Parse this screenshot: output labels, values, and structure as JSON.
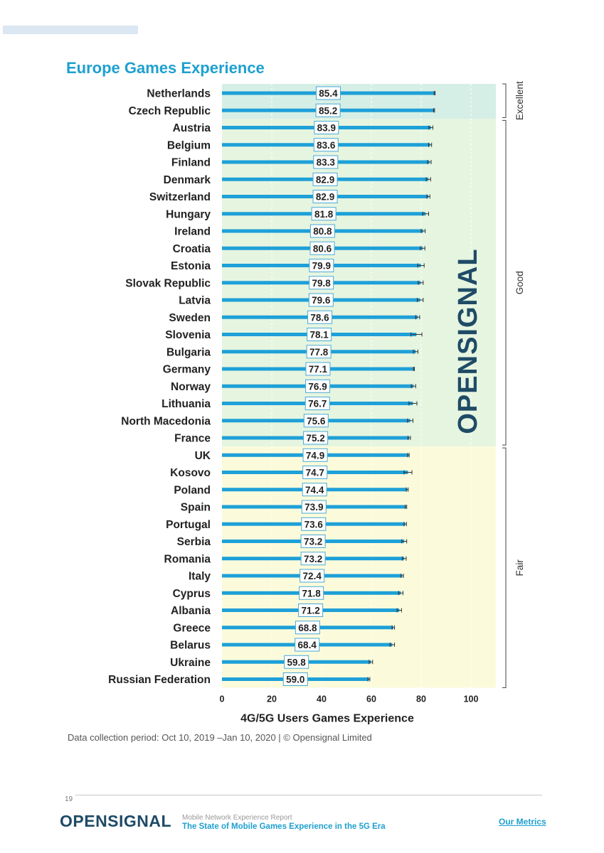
{
  "page": {
    "title": "Europe Games Experience",
    "note": "Data collection period: Oct 10, 2019 –Jan 10, 2020 | © Opensignal Limited",
    "watermark": "OPENSIGNAL",
    "page_number": "19",
    "footer": {
      "logo": "OPENSIGNAL",
      "report": "Mobile Network Experience Report",
      "subtitle": "The State of Mobile Games Experience in the 5G Era",
      "link": "Our Metrics"
    }
  },
  "colors": {
    "bar": "#1ea0d8",
    "excellent_band": "#d6efe6",
    "good_band": "#e6f5e0",
    "fair_band": "#fbfbdb",
    "title": "#1ea0cf"
  },
  "chart_data": {
    "type": "bar",
    "orientation": "horizontal",
    "xlabel": "4G/5G Users Games Experience",
    "xlim": [
      0,
      110
    ],
    "xticks": [
      0,
      20,
      40,
      60,
      80,
      100
    ],
    "categories": [
      "Netherlands",
      "Czech Republic",
      "Austria",
      "Belgium",
      "Finland",
      "Denmark",
      "Switzerland",
      "Hungary",
      "Ireland",
      "Croatia",
      "Estonia",
      "Slovak Republic",
      "Latvia",
      "Sweden",
      "Slovenia",
      "Bulgaria",
      "Germany",
      "Norway",
      "Lithuania",
      "North Macedonia",
      "France",
      "UK",
      "Kosovo",
      "Poland",
      "Spain",
      "Portugal",
      "Serbia",
      "Romania",
      "Italy",
      "Cyprus",
      "Albania",
      "Greece",
      "Belarus",
      "Ukraine",
      "Russian Federation"
    ],
    "values": [
      85.4,
      85.2,
      83.9,
      83.6,
      83.3,
      82.9,
      82.9,
      81.8,
      80.8,
      80.6,
      79.9,
      79.8,
      79.6,
      78.6,
      78.1,
      77.8,
      77.1,
      76.9,
      76.7,
      75.6,
      75.2,
      74.9,
      74.7,
      74.4,
      73.9,
      73.6,
      73.2,
      73.2,
      72.4,
      71.8,
      71.2,
      68.8,
      68.4,
      59.8,
      59.0
    ],
    "value_labels": [
      "85.4",
      "85.2",
      "83.9",
      "83.6",
      "83.3",
      "82.9",
      "82.9",
      "81.8",
      "80.8",
      "80.6",
      "79.9",
      "79.8",
      "79.6",
      "78.6",
      "78.1",
      "77.8",
      "77.1",
      "76.9",
      "76.7",
      "75.6",
      "75.2",
      "74.9",
      "74.7",
      "74.4",
      "73.9",
      "73.6",
      "73.2",
      "73.2",
      "72.4",
      "71.8",
      "71.2",
      "68.8",
      "68.4",
      "59.8",
      "59.0"
    ],
    "error": [
      0.2,
      0.2,
      0.8,
      0.6,
      0.7,
      0.9,
      0.6,
      1.2,
      0.8,
      0.9,
      1.3,
      1.0,
      1.2,
      0.8,
      2.2,
      0.9,
      0.2,
      0.9,
      1.6,
      1.1,
      0.5,
      0.3,
      1.6,
      0.4,
      0.3,
      0.5,
      1.0,
      0.8,
      0.5,
      0.9,
      0.9,
      0.5,
      0.9,
      0.7,
      0.4
    ],
    "bands": [
      {
        "label": "Excellent",
        "from": "Netherlands",
        "to": "Czech Republic"
      },
      {
        "label": "Good",
        "from": "Austria",
        "to": "France"
      },
      {
        "label": "Fair",
        "from": "UK",
        "to": "Russian Federation"
      }
    ]
  }
}
